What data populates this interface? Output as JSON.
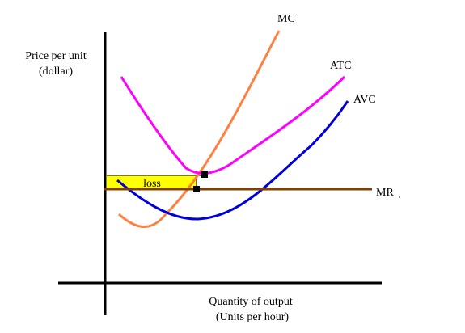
{
  "chart_data": {
    "type": "line",
    "ylabel_lines": [
      "Price per unit",
      "(dollar)"
    ],
    "xlabel_lines": [
      "Quantity of output",
      "(Units per hour)"
    ],
    "series": [
      {
        "name": "MC",
        "color": "#ff8040"
      },
      {
        "name": "ATC",
        "color": "#ff00ff"
      },
      {
        "name": "AVC",
        "color": "#0000dd"
      },
      {
        "name": "MR",
        "color": "#804000"
      }
    ],
    "annotations": [
      {
        "text": "loss",
        "fill": "#ffff00"
      }
    ],
    "marker_color": "#000000",
    "grid": false
  }
}
